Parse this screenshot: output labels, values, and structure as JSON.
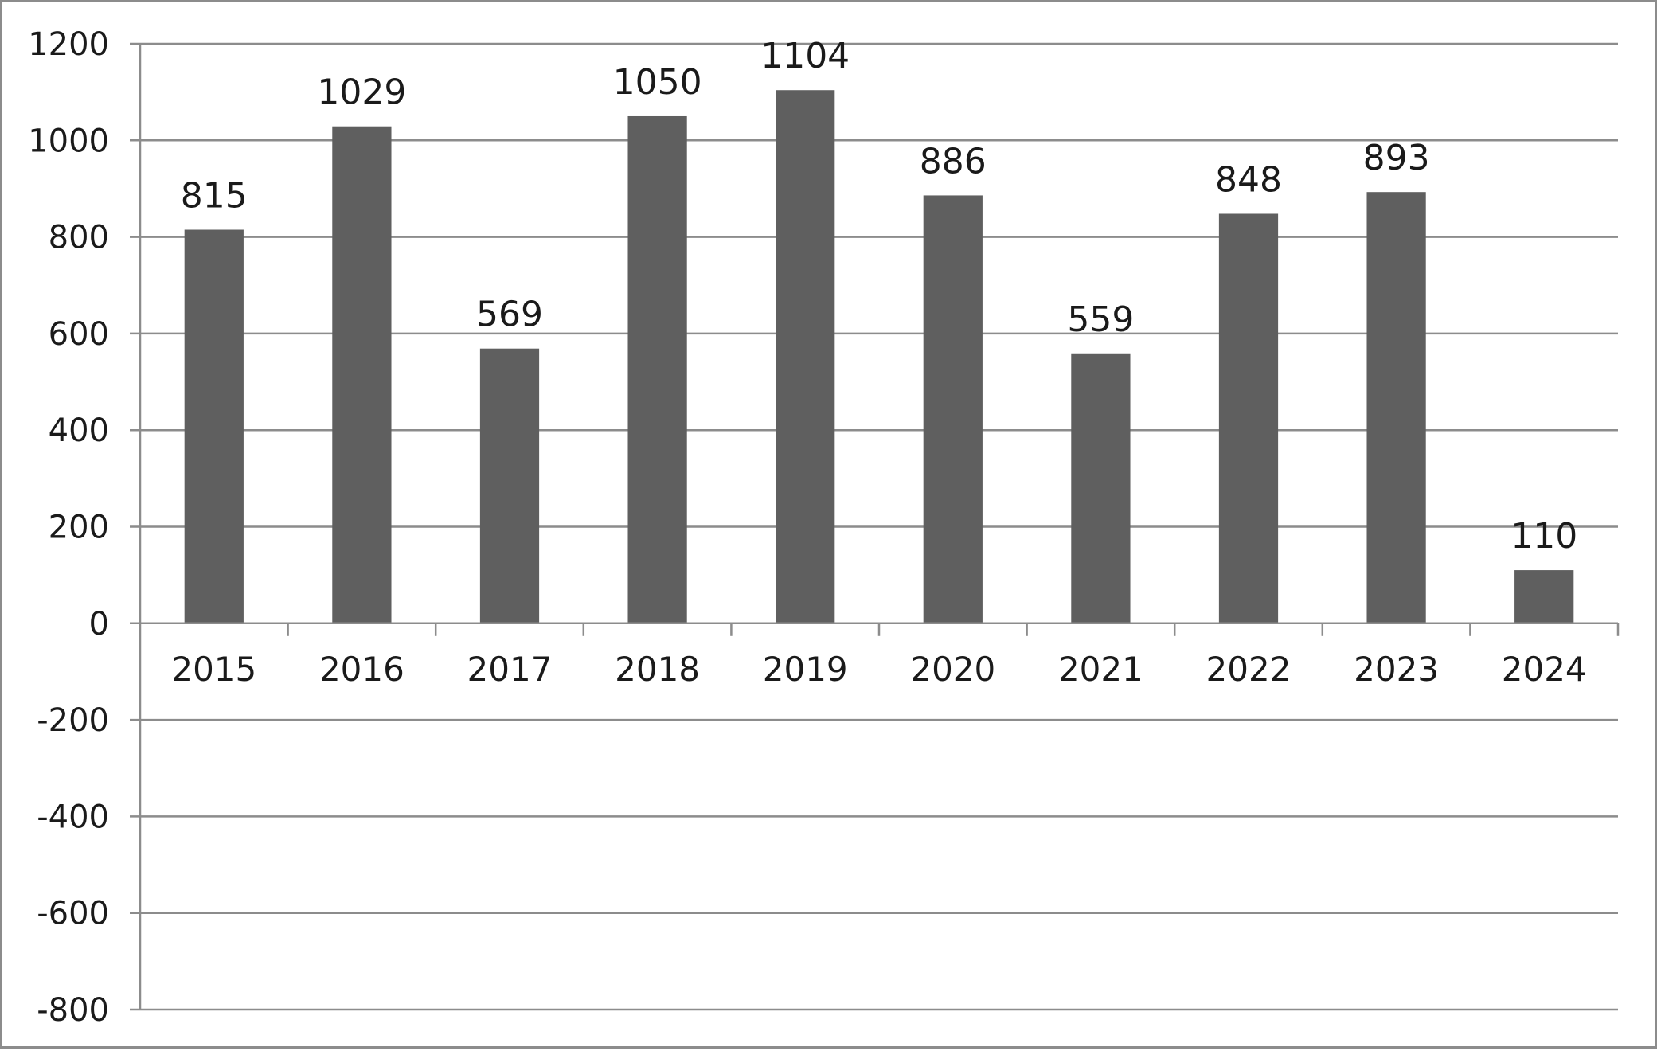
{
  "chart_data": {
    "type": "bar",
    "title": "",
    "xlabel": "",
    "ylabel": "",
    "categories": [
      "2015",
      "2016",
      "2017",
      "2018",
      "2019",
      "2020",
      "2021",
      "2022",
      "2023",
      "2024"
    ],
    "values": [
      815,
      1029,
      569,
      1050,
      1104,
      886,
      559,
      848,
      893,
      110
    ],
    "data_labels": [
      "815",
      "1029",
      "569",
      "1050",
      "1104",
      "886",
      "559",
      "848",
      "893",
      "110"
    ],
    "ylim": [
      -800,
      1200
    ],
    "yticks": [
      1200,
      1000,
      800,
      600,
      400,
      200,
      0,
      -200,
      -400,
      -600,
      -800
    ],
    "ytick_labels": [
      "1200",
      "1000",
      "800",
      "600",
      "400",
      "200",
      "0",
      "-200",
      "-400",
      "-600",
      "-800"
    ],
    "grid": true,
    "legend": "none",
    "bar_color": "#5f5f5f",
    "grid_color": "#8c8c8c"
  }
}
